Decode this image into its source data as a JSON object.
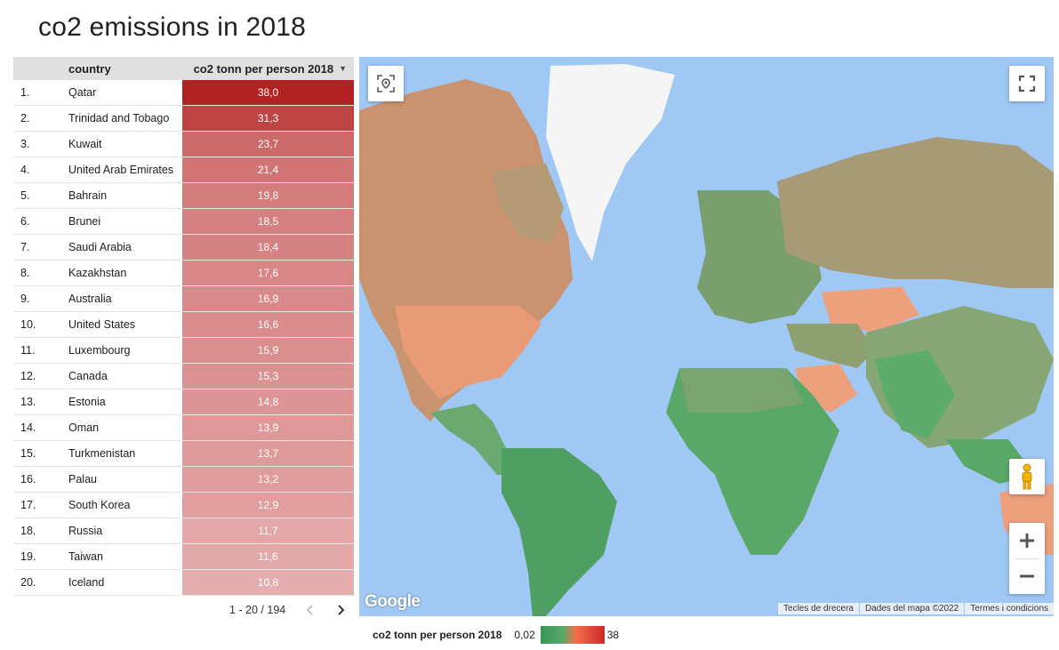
{
  "title": "co2 emissions in 2018",
  "table": {
    "columns": [
      "country",
      "co2 tonn per person 2018"
    ],
    "sort_indicator": "▼",
    "rows": [
      {
        "rank": "1.",
        "country": "Qatar",
        "value": "38,0",
        "color": "#b22222"
      },
      {
        "rank": "2.",
        "country": "Trinidad and Tobago",
        "value": "31,3",
        "color": "#bf4545"
      },
      {
        "rank": "3.",
        "country": "Kuwait",
        "value": "23,7",
        "color": "#cc6969"
      },
      {
        "rank": "4.",
        "country": "United Arab Emirates",
        "value": "21,4",
        "color": "#d17474"
      },
      {
        "rank": "5.",
        "country": "Bahrain",
        "value": "19,8",
        "color": "#d47c7c"
      },
      {
        "rank": "6.",
        "country": "Brunei",
        "value": "18,5",
        "color": "#d68181"
      },
      {
        "rank": "7.",
        "country": "Saudi Arabia",
        "value": "18,4",
        "color": "#d68282"
      },
      {
        "rank": "8.",
        "country": "Kazakhstan",
        "value": "17,6",
        "color": "#d88686"
      },
      {
        "rank": "9.",
        "country": "Australia",
        "value": "16,9",
        "color": "#d98989"
      },
      {
        "rank": "10.",
        "country": "United States",
        "value": "16,6",
        "color": "#da8b8b"
      },
      {
        "rank": "11.",
        "country": "Luxembourg",
        "value": "15,9",
        "color": "#db8e8e"
      },
      {
        "rank": "12.",
        "country": "Canada",
        "value": "15,3",
        "color": "#dc9292"
      },
      {
        "rank": "13.",
        "country": "Estonia",
        "value": "14,8",
        "color": "#dd9494"
      },
      {
        "rank": "14.",
        "country": "Oman",
        "value": "13,9",
        "color": "#df9999"
      },
      {
        "rank": "15.",
        "country": "Turkmenistan",
        "value": "13,7",
        "color": "#df9a9a"
      },
      {
        "rank": "16.",
        "country": "Palau",
        "value": "13,2",
        "color": "#e09d9d"
      },
      {
        "rank": "17.",
        "country": "South Korea",
        "value": "12,9",
        "color": "#e19e9e"
      },
      {
        "rank": "18.",
        "country": "Russia",
        "value": "11,7",
        "color": "#e3a7a7"
      },
      {
        "rank": "19.",
        "country": "Taiwan",
        "value": "11,6",
        "color": "#e3a8a8"
      },
      {
        "rank": "20.",
        "country": "Iceland",
        "value": "10,8",
        "color": "#e5adad"
      }
    ],
    "pagination": "1 - 20 / 194"
  },
  "map": {
    "logo": "Google",
    "attribution": [
      "Tecles de drecera",
      "Dades del mapa ©2022",
      "Termes i condicions"
    ],
    "controls": [
      "location-pin-icon",
      "fullscreen-icon",
      "pegman-icon",
      "zoom-in-icon",
      "zoom-out-icon"
    ],
    "colors": {
      "water": "#9fc8f5",
      "low": "#5aa868",
      "high": "#f0704a",
      "ice": "#f5f5f5"
    }
  },
  "legend": {
    "label": "co2 tonn per person 2018",
    "min": "0,02",
    "max": "38"
  }
}
